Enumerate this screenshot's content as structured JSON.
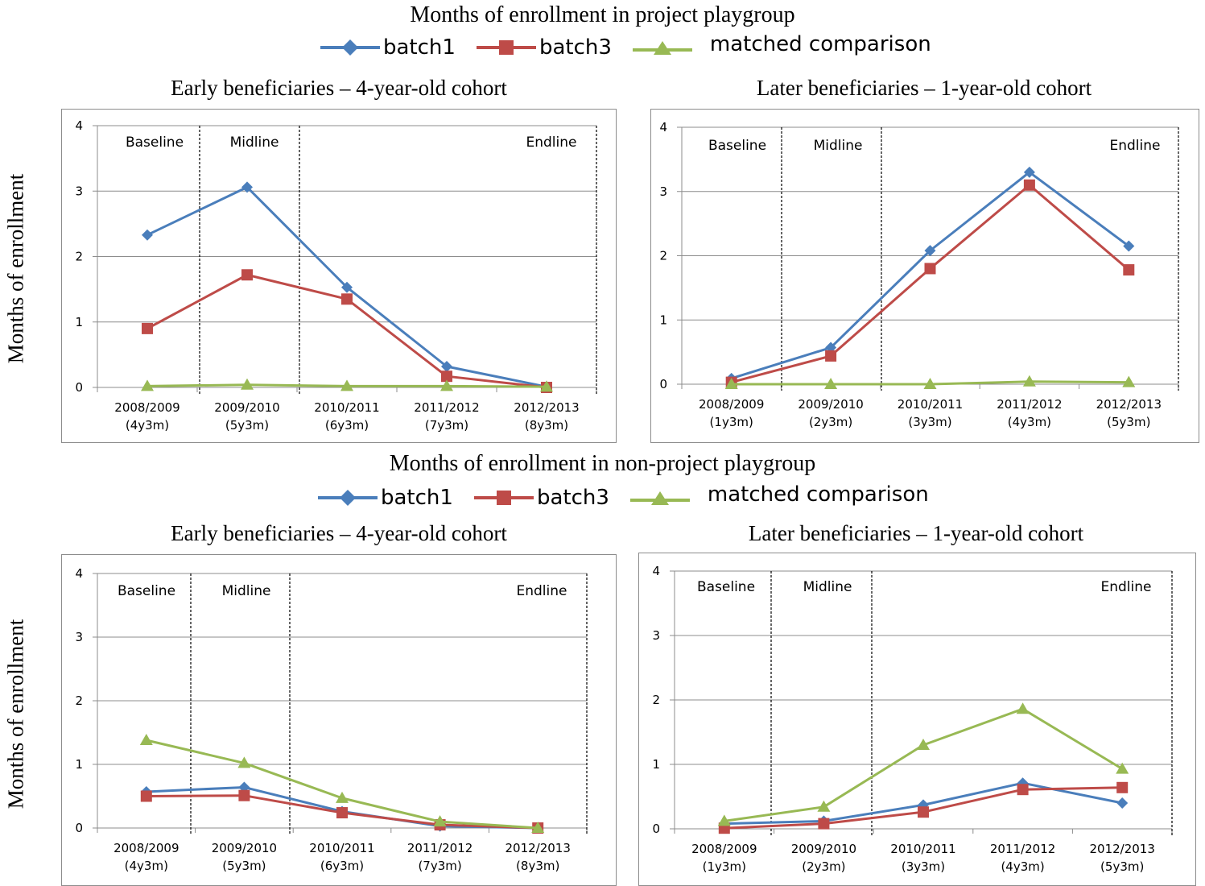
{
  "sections": [
    {
      "title": "Months of enrollment in project playgroup"
    },
    {
      "title": "Months of enrollment in non-project playgroup"
    }
  ],
  "legend": [
    {
      "label": "batch1",
      "color": "#4a7ebb",
      "marker": "diamond"
    },
    {
      "label": "batch3",
      "color": "#be4b48",
      "marker": "square"
    },
    {
      "label": "matched comparison",
      "color": "#98b954",
      "marker": "triangle"
    }
  ],
  "ylabel": "Months of enrollment",
  "phases": [
    "Baseline",
    "Midline",
    "Endline"
  ],
  "chart_data": [
    {
      "type": "line",
      "title": "Early beneficiaries – 4-year-old cohort",
      "ylabel": "Months of enrollment",
      "ylim": [
        0,
        4
      ],
      "yticks": [
        "0",
        "1",
        "2",
        "3",
        "4"
      ],
      "categories": [
        "2008/2009|(4y3m)",
        "2009/2010|(5y3m)",
        "2010/2011|(6y3m)",
        "2011/2012|(7y3m)",
        "2012/2013|(8y3m)"
      ],
      "series": [
        {
          "name": "batch1",
          "values": [
            2.33,
            3.06,
            1.53,
            0.32,
            0.01
          ]
        },
        {
          "name": "batch3",
          "values": [
            0.9,
            1.72,
            1.35,
            0.17,
            0.0
          ]
        },
        {
          "name": "matched comparison",
          "values": [
            0.02,
            0.04,
            0.02,
            0.02,
            0.01
          ]
        }
      ]
    },
    {
      "type": "line",
      "title": "Later beneficiaries – 1-year-old cohort",
      "ylabel": "",
      "ylim": [
        0,
        4
      ],
      "yticks": [
        "0",
        "1",
        "2",
        "3",
        "4"
      ],
      "categories": [
        "2008/2009|(1y3m)",
        "2009/2010|(2y3m)",
        "2010/2011|(3y3m)",
        "2011/2012|(4y3m)",
        "2012/2013|(5y3m)"
      ],
      "series": [
        {
          "name": "batch1",
          "values": [
            0.09,
            0.57,
            2.08,
            3.3,
            2.15
          ]
        },
        {
          "name": "batch3",
          "values": [
            0.03,
            0.44,
            1.8,
            3.1,
            1.78
          ]
        },
        {
          "name": "matched comparison",
          "values": [
            0.0,
            0.0,
            0.0,
            0.04,
            0.03
          ]
        }
      ]
    },
    {
      "type": "line",
      "title": "Early beneficiaries – 4-year-old cohort",
      "ylabel": "Months of enrollment",
      "ylim": [
        0,
        4
      ],
      "yticks": [
        "0",
        "1",
        "2",
        "3",
        "4"
      ],
      "categories": [
        "2008/2009|(4y3m)",
        "2009/2010|(5y3m)",
        "2010/2011|(6y3m)",
        "2011/2012|(7y3m)",
        "2012/2013|(8y3m)"
      ],
      "series": [
        {
          "name": "batch1",
          "values": [
            0.57,
            0.64,
            0.26,
            0.03,
            0.0
          ]
        },
        {
          "name": "batch3",
          "values": [
            0.5,
            0.51,
            0.24,
            0.05,
            0.0
          ]
        },
        {
          "name": "matched comparison",
          "values": [
            1.38,
            1.02,
            0.47,
            0.1,
            0.0
          ]
        }
      ]
    },
    {
      "type": "line",
      "title": "Later beneficiaries – 1-year-old cohort",
      "ylabel": "",
      "ylim": [
        0,
        4
      ],
      "yticks": [
        "0",
        "1",
        "2",
        "3",
        "4"
      ],
      "categories": [
        "2008/2009|(1y3m)",
        "2009/2010|(2y3m)",
        "2010/2011|(3y3m)",
        "2011/2012|(4y3m)",
        "2012/2013|(5y3m)"
      ],
      "series": [
        {
          "name": "batch1",
          "values": [
            0.08,
            0.12,
            0.37,
            0.71,
            0.4
          ]
        },
        {
          "name": "batch3",
          "values": [
            0.01,
            0.08,
            0.26,
            0.61,
            0.64
          ]
        },
        {
          "name": "matched comparison",
          "values": [
            0.12,
            0.34,
            1.3,
            1.86,
            0.93
          ]
        }
      ]
    }
  ]
}
